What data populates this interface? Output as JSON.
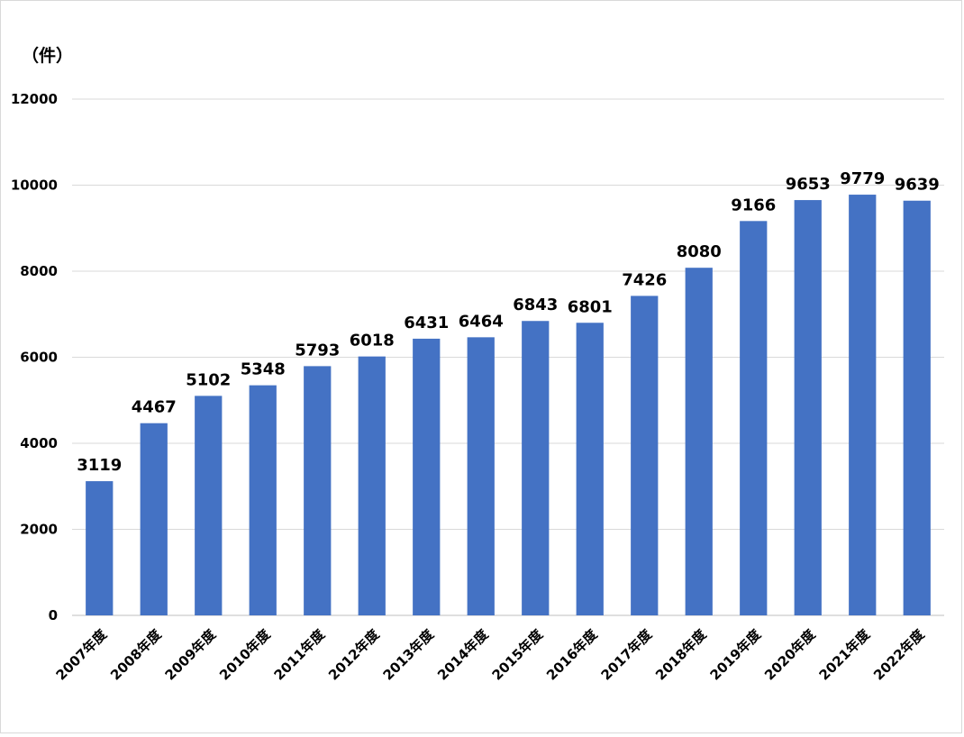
{
  "chart_data": {
    "type": "bar",
    "title": "",
    "xlabel": "",
    "ylabel": "（件）",
    "ylim": [
      0,
      12000
    ],
    "yticks": [
      0,
      2000,
      4000,
      6000,
      8000,
      10000,
      12000
    ],
    "grid": true,
    "legend": "none",
    "bar_color": "#4472C4",
    "categories": [
      "2007年度",
      "2008年度",
      "2009年度",
      "2010年度",
      "2011年度",
      "2012年度",
      "2013年度",
      "2014年度",
      "2015年度",
      "2016年度",
      "2017年度",
      "2018年度",
      "2019年度",
      "2020年度",
      "2021年度",
      "2022年度"
    ],
    "values": [
      3119,
      4467,
      5102,
      5348,
      5793,
      6018,
      6431,
      6464,
      6843,
      6801,
      7426,
      8080,
      9166,
      9653,
      9779,
      9639
    ]
  }
}
